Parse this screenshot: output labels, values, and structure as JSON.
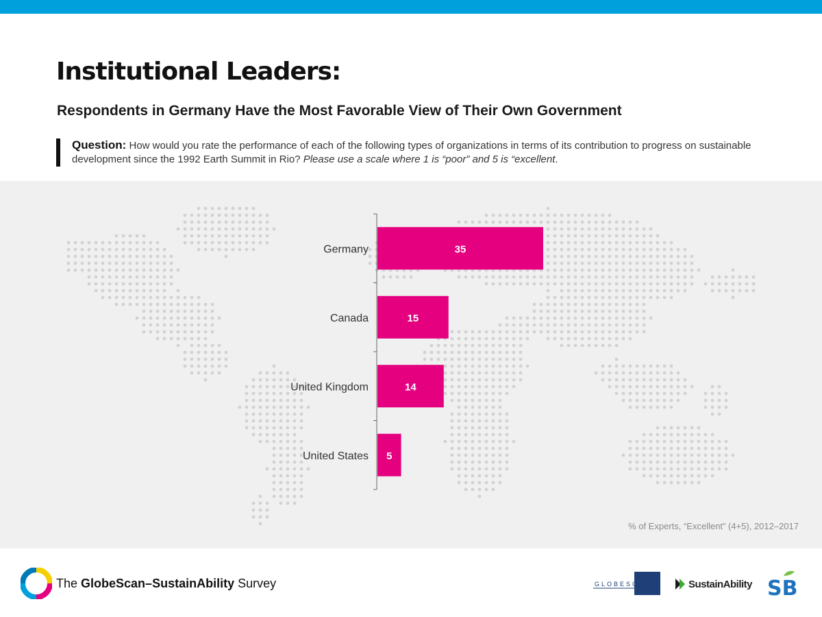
{
  "header": {
    "title": "Institutional Leaders:",
    "subtitle": "Respondents in Germany Have the Most Favorable View of Their Own Government",
    "question_label": "Question:",
    "question_text": " How would you rate the performance of each of the following types of organizations in terms of its contribution to progress on sustainable development since the 1992 Earth Summit in Rio? ",
    "question_italic": "Please use a scale where 1 is “poor” and 5 is “excellent",
    "question_end": "."
  },
  "chart_data": {
    "type": "bar",
    "orientation": "horizontal",
    "categories": [
      "Germany",
      "Canada",
      "United Kingdom",
      "United States"
    ],
    "values": [
      35,
      15,
      14,
      5
    ],
    "bar_color": "#e4007f",
    "title": "",
    "xlabel": "",
    "ylabel": "",
    "xlim": [
      0,
      35
    ],
    "grid": false,
    "note": "% of Experts, “Excellent” (4+5), 2012–2017"
  },
  "colors": {
    "top_bar": "#00a0dc",
    "accent": "#e4007f",
    "panel_bg": "#f0f0f0",
    "map_dots": "#d2d2d2"
  },
  "footer": {
    "survey_prefix": "The ",
    "survey_brand": "GlobeScan–SustainAbility",
    "survey_suffix": " Survey",
    "globescan_logo_text": "GLOBESCAN",
    "sustainability_logo_text": "SustainAbility",
    "sb_logo_text": "SB"
  }
}
